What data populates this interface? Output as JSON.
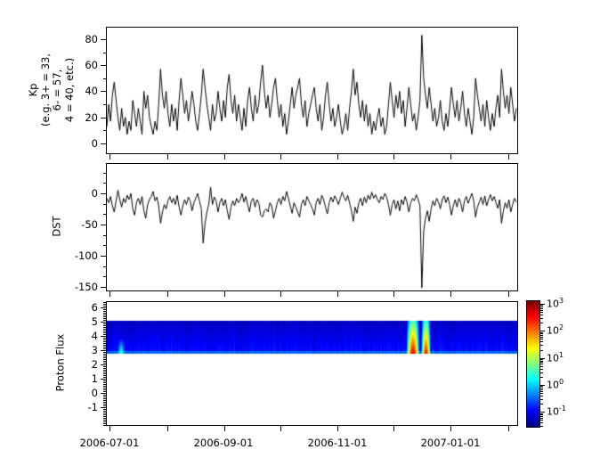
{
  "figure": {
    "background": "#ffffff",
    "axis_color": "#000000",
    "series_line_color": "#000000",
    "colormap_name": "jet"
  },
  "x_axis": {
    "start_date": "2006-06-29",
    "end_date": "2007-02-06",
    "month_tick_dates": [
      "2006-07-01",
      "2006-08-01",
      "2006-09-01",
      "2006-10-01",
      "2006-11-01",
      "2006-12-01",
      "2007-01-01",
      "2007-02-01"
    ],
    "major_labels": [
      "2006-07-01",
      "2006-09-01",
      "2006-11-01",
      "2007-01-01"
    ]
  },
  "chart_data": [
    {
      "type": "line",
      "title": "Kp index",
      "ylabel_lines": [
        "Kp",
        "(e.g. 3+ = 33,",
        "6- = 57,",
        "4 = 40, etc.)"
      ],
      "yticks": [
        0,
        20,
        40,
        60,
        80
      ],
      "ytick_labels": [
        "0",
        "20",
        "40",
        "60",
        "80"
      ],
      "y_minor_step": 10,
      "ylim": [
        -7.5,
        89.5
      ],
      "line_color": "#000000",
      "points_per_day": 1,
      "values": [
        13,
        30,
        17,
        37,
        47,
        33,
        20,
        10,
        27,
        13,
        20,
        7,
        17,
        10,
        33,
        23,
        13,
        27,
        17,
        7,
        40,
        27,
        37,
        20,
        13,
        7,
        17,
        10,
        30,
        57,
        37,
        27,
        40,
        23,
        13,
        30,
        17,
        27,
        10,
        33,
        50,
        37,
        23,
        33,
        17,
        27,
        40,
        30,
        17,
        10,
        23,
        37,
        57,
        43,
        30,
        20,
        10,
        30,
        17,
        23,
        40,
        27,
        17,
        33,
        20,
        43,
        53,
        33,
        23,
        37,
        17,
        30,
        20,
        10,
        27,
        13,
        33,
        43,
        27,
        17,
        37,
        23,
        30,
        47,
        60,
        40,
        27,
        37,
        20,
        30,
        43,
        50,
        33,
        20,
        30,
        13,
        23,
        7,
        17,
        30,
        43,
        27,
        37,
        43,
        50,
        30,
        20,
        33,
        13,
        23,
        30,
        37,
        43,
        27,
        17,
        30,
        10,
        20,
        37,
        47,
        30,
        17,
        27,
        13,
        20,
        30,
        17,
        7,
        13,
        23,
        10,
        27,
        40,
        57,
        37,
        47,
        30,
        20,
        33,
        17,
        30,
        13,
        23,
        7,
        17,
        10,
        20,
        27,
        13,
        20,
        7,
        13,
        30,
        47,
        33,
        20,
        37,
        27,
        40,
        23,
        33,
        13,
        27,
        43,
        30,
        17,
        23,
        10,
        20,
        33,
        83,
        50,
        37,
        27,
        43,
        30,
        17,
        27,
        13,
        20,
        33,
        17,
        10,
        23,
        13,
        27,
        43,
        30,
        20,
        33,
        17,
        27,
        40,
        23,
        13,
        27,
        17,
        7,
        20,
        50,
        37,
        27,
        17,
        30,
        13,
        33,
        20,
        10,
        23,
        13,
        27,
        37,
        20,
        57,
        40,
        27,
        37,
        23,
        43,
        30,
        17,
        27
      ]
    },
    {
      "type": "line",
      "title": "DST index",
      "ylabel": "DST",
      "yticks": [
        0,
        -50,
        -100,
        -150
      ],
      "ytick_labels": [
        "0",
        "-50",
        "-100",
        "-150"
      ],
      "y_minor_per_interval": 2,
      "ylim": [
        -156,
        48.7
      ],
      "line_color": "#000000",
      "points_per_day": 1,
      "values": [
        -8,
        -15,
        -5,
        -20,
        -30,
        -12,
        5,
        -10,
        -22,
        -8,
        -15,
        -3,
        -10,
        0,
        -25,
        -35,
        -15,
        -8,
        -18,
        -5,
        -28,
        -40,
        -18,
        -10,
        -5,
        3,
        -12,
        -6,
        -20,
        -48,
        -30,
        -18,
        -25,
        -12,
        -5,
        -15,
        -8,
        -18,
        -3,
        -22,
        -35,
        -20,
        -10,
        -18,
        -6,
        -12,
        -28,
        -15,
        -8,
        0,
        -12,
        -25,
        -80,
        -48,
        -30,
        -18,
        10,
        -18,
        -6,
        -12,
        -30,
        -15,
        -8,
        -20,
        -10,
        -28,
        -42,
        -22,
        -12,
        -20,
        -8,
        -15,
        -10,
        0,
        -14,
        -5,
        -18,
        -30,
        -12,
        -8,
        -22,
        -10,
        -15,
        -35,
        -38,
        -28,
        -25,
        -30,
        -15,
        -20,
        -40,
        -28,
        -15,
        -8,
        -18,
        -5,
        -12,
        3,
        -8,
        -20,
        -32,
        -15,
        -22,
        -30,
        -38,
        -18,
        -10,
        -20,
        -5,
        -12,
        -18,
        -25,
        -35,
        -15,
        -8,
        -18,
        -3,
        -10,
        -22,
        -33,
        -15,
        -6,
        -14,
        -4,
        -10,
        -18,
        -8,
        2,
        -6,
        -12,
        -3,
        -15,
        -28,
        -45,
        -22,
        -32,
        -15,
        -8,
        -20,
        -6,
        -15,
        -3,
        -10,
        2,
        -8,
        -2,
        -10,
        -15,
        -5,
        -10,
        0,
        -6,
        -18,
        -35,
        -18,
        -10,
        -25,
        -12,
        -28,
        -10,
        -18,
        -5,
        -14,
        -30,
        -15,
        -8,
        -12,
        -2,
        -10,
        -20,
        -152,
        -60,
        -40,
        -28,
        -45,
        -25,
        -12,
        -20,
        -8,
        -14,
        -25,
        -10,
        -4,
        -15,
        -6,
        -18,
        -35,
        -20,
        -10,
        -22,
        -8,
        -15,
        -30,
        -12,
        -5,
        -16,
        -8,
        0,
        -12,
        -38,
        -22,
        -14,
        -6,
        -18,
        -4,
        -20,
        -10,
        -2,
        -12,
        -5,
        -15,
        -24,
        -10,
        -48,
        -28,
        -15,
        -24,
        -10,
        -30,
        -18,
        -8,
        -14
      ]
    },
    {
      "type": "heatmap",
      "title": "Proton Flux spectrogram",
      "ylabel": "Proton Flux",
      "yticks": [
        -1,
        0,
        1,
        2,
        3,
        4,
        5,
        6
      ],
      "ytick_labels": [
        "-1",
        "0",
        "1",
        "2",
        "3",
        "4",
        "5",
        "6"
      ],
      "y_minor_step": 0.125,
      "ylim": [
        -2.28,
        6.41
      ],
      "band_value_range": [
        2.72,
        5.05
      ],
      "base_log_flux": -1.25,
      "bottom_edge_log_flux": -0.5,
      "color_log_range": [
        -1.55,
        3.1
      ],
      "features": [
        {
          "name": "July 2006 proton event",
          "start": "2006-07-05",
          "end": "2006-07-09",
          "peak_log_flux": 0.45,
          "shape": "spike"
        },
        {
          "name": "December 2006 proton event 1",
          "start": "2006-12-08",
          "end": "2006-12-15",
          "peak_log_flux": 2.6,
          "shape": "plume"
        },
        {
          "name": "December 2006 proton event 2",
          "start": "2006-12-16",
          "end": "2006-12-21",
          "peak_log_flux": 2.45,
          "shape": "plume"
        }
      ],
      "colorbar": {
        "tick_exponents": [
          3,
          2,
          1,
          0,
          -1
        ],
        "tick_labels": [
          "10^3",
          "10^2",
          "10^1",
          "10^0",
          "10^-1"
        ],
        "base": "10"
      }
    }
  ]
}
